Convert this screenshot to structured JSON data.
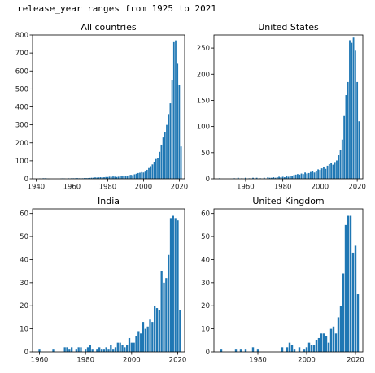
{
  "caption": "release_year ranges from 1925 to 2021",
  "colors": {
    "bar": "#1f77b4",
    "axis": "#000000"
  },
  "chart_data": [
    {
      "type": "bar",
      "title": "All countries",
      "xlim": [
        1938,
        2023
      ],
      "ylim": [
        0,
        800
      ],
      "xticks": [
        1940,
        1960,
        1980,
        2000,
        2020
      ],
      "yticks": [
        0,
        100,
        200,
        300,
        400,
        500,
        600,
        700,
        800
      ],
      "x": [
        1942,
        1944,
        1945,
        1946,
        1947,
        1954,
        1955,
        1956,
        1958,
        1959,
        1960,
        1961,
        1962,
        1963,
        1964,
        1965,
        1966,
        1967,
        1968,
        1969,
        1970,
        1971,
        1972,
        1973,
        1974,
        1975,
        1976,
        1977,
        1978,
        1979,
        1980,
        1981,
        1982,
        1983,
        1984,
        1985,
        1986,
        1987,
        1988,
        1989,
        1990,
        1991,
        1992,
        1993,
        1994,
        1995,
        1996,
        1997,
        1998,
        1999,
        2000,
        2001,
        2002,
        2003,
        2004,
        2005,
        2006,
        2007,
        2008,
        2009,
        2010,
        2011,
        2012,
        2013,
        2014,
        2015,
        2016,
        2017,
        2018,
        2019,
        2020,
        2021
      ],
      "values": [
        2,
        3,
        3,
        2,
        1,
        2,
        3,
        2,
        3,
        2,
        4,
        3,
        3,
        4,
        3,
        3,
        3,
        4,
        4,
        4,
        5,
        6,
        6,
        8,
        7,
        8,
        9,
        8,
        9,
        10,
        10,
        12,
        11,
        13,
        12,
        10,
        12,
        14,
        15,
        16,
        17,
        18,
        21,
        22,
        20,
        25,
        28,
        32,
        34,
        37,
        35,
        40,
        50,
        60,
        70,
        80,
        95,
        110,
        115,
        150,
        190,
        230,
        260,
        300,
        360,
        420,
        550,
        760,
        770,
        640,
        520,
        180
      ]
    },
    {
      "type": "bar",
      "title": "United States",
      "xlim": [
        1943,
        2023
      ],
      "ylim": [
        0,
        275
      ],
      "xticks": [
        1960,
        1980,
        2000,
        2020
      ],
      "yticks": [
        0,
        50,
        100,
        150,
        200,
        250
      ],
      "x": [
        1946,
        1954,
        1956,
        1958,
        1960,
        1962,
        1964,
        1966,
        1968,
        1970,
        1972,
        1973,
        1974,
        1975,
        1976,
        1977,
        1978,
        1979,
        1980,
        1981,
        1982,
        1983,
        1984,
        1985,
        1986,
        1987,
        1988,
        1989,
        1990,
        1991,
        1992,
        1993,
        1994,
        1995,
        1996,
        1997,
        1998,
        1999,
        2000,
        2001,
        2002,
        2003,
        2004,
        2005,
        2006,
        2007,
        2008,
        2009,
        2010,
        2011,
        2012,
        2013,
        2014,
        2015,
        2016,
        2017,
        2018,
        2019,
        2020,
        2021
      ],
      "values": [
        1,
        1,
        2,
        1,
        2,
        1,
        2,
        2,
        1,
        2,
        3,
        2,
        2,
        3,
        2,
        3,
        4,
        3,
        4,
        3,
        5,
        4,
        6,
        5,
        7,
        8,
        9,
        8,
        10,
        9,
        12,
        10,
        11,
        13,
        14,
        12,
        15,
        18,
        17,
        20,
        22,
        19,
        25,
        28,
        30,
        27,
        32,
        35,
        45,
        55,
        75,
        120,
        160,
        185,
        265,
        260,
        270,
        245,
        185,
        110
      ]
    },
    {
      "type": "bar",
      "title": "India",
      "xlim": [
        1957,
        2023
      ],
      "ylim": [
        0,
        62
      ],
      "xticks": [
        1960,
        1980,
        2000,
        2020
      ],
      "yticks": [
        0,
        10,
        20,
        30,
        40,
        50,
        60
      ],
      "x": [
        1960,
        1966,
        1971,
        1972,
        1973,
        1974,
        1976,
        1977,
        1978,
        1980,
        1981,
        1982,
        1983,
        1985,
        1986,
        1987,
        1988,
        1989,
        1990,
        1991,
        1992,
        1993,
        1994,
        1995,
        1996,
        1997,
        1998,
        1999,
        2000,
        2001,
        2002,
        2003,
        2004,
        2005,
        2006,
        2007,
        2008,
        2009,
        2010,
        2011,
        2012,
        2013,
        2014,
        2015,
        2016,
        2017,
        2018,
        2019,
        2020,
        2021
      ],
      "values": [
        1,
        1,
        2,
        2,
        1,
        2,
        1,
        2,
        2,
        1,
        2,
        3,
        1,
        1,
        2,
        1,
        1,
        2,
        1,
        3,
        1,
        2,
        4,
        4,
        3,
        2,
        3,
        6,
        4,
        4,
        7,
        9,
        8,
        13,
        10,
        11,
        14,
        13,
        20,
        19,
        18,
        35,
        30,
        32,
        42,
        58,
        59,
        58,
        57,
        18
      ]
    },
    {
      "type": "bar",
      "title": "United Kingdom",
      "xlim": [
        1962,
        2023
      ],
      "ylim": [
        0,
        62
      ],
      "xticks": [
        1980,
        2000,
        2020
      ],
      "yticks": [
        0,
        10,
        20,
        30,
        40,
        50,
        60
      ],
      "x": [
        1965,
        1971,
        1973,
        1975,
        1978,
        1980,
        1990,
        1992,
        1993,
        1994,
        1995,
        1997,
        1999,
        2000,
        2001,
        2002,
        2003,
        2004,
        2005,
        2006,
        2007,
        2008,
        2009,
        2010,
        2011,
        2012,
        2013,
        2014,
        2015,
        2016,
        2017,
        2018,
        2019,
        2020,
        2021
      ],
      "values": [
        1,
        1,
        1,
        1,
        2,
        1,
        2,
        2,
        4,
        3,
        1,
        2,
        1,
        2,
        4,
        3,
        3,
        5,
        6,
        8,
        8,
        7,
        4,
        10,
        11,
        8,
        15,
        20,
        34,
        55,
        59,
        59,
        43,
        46,
        25
      ]
    }
  ]
}
